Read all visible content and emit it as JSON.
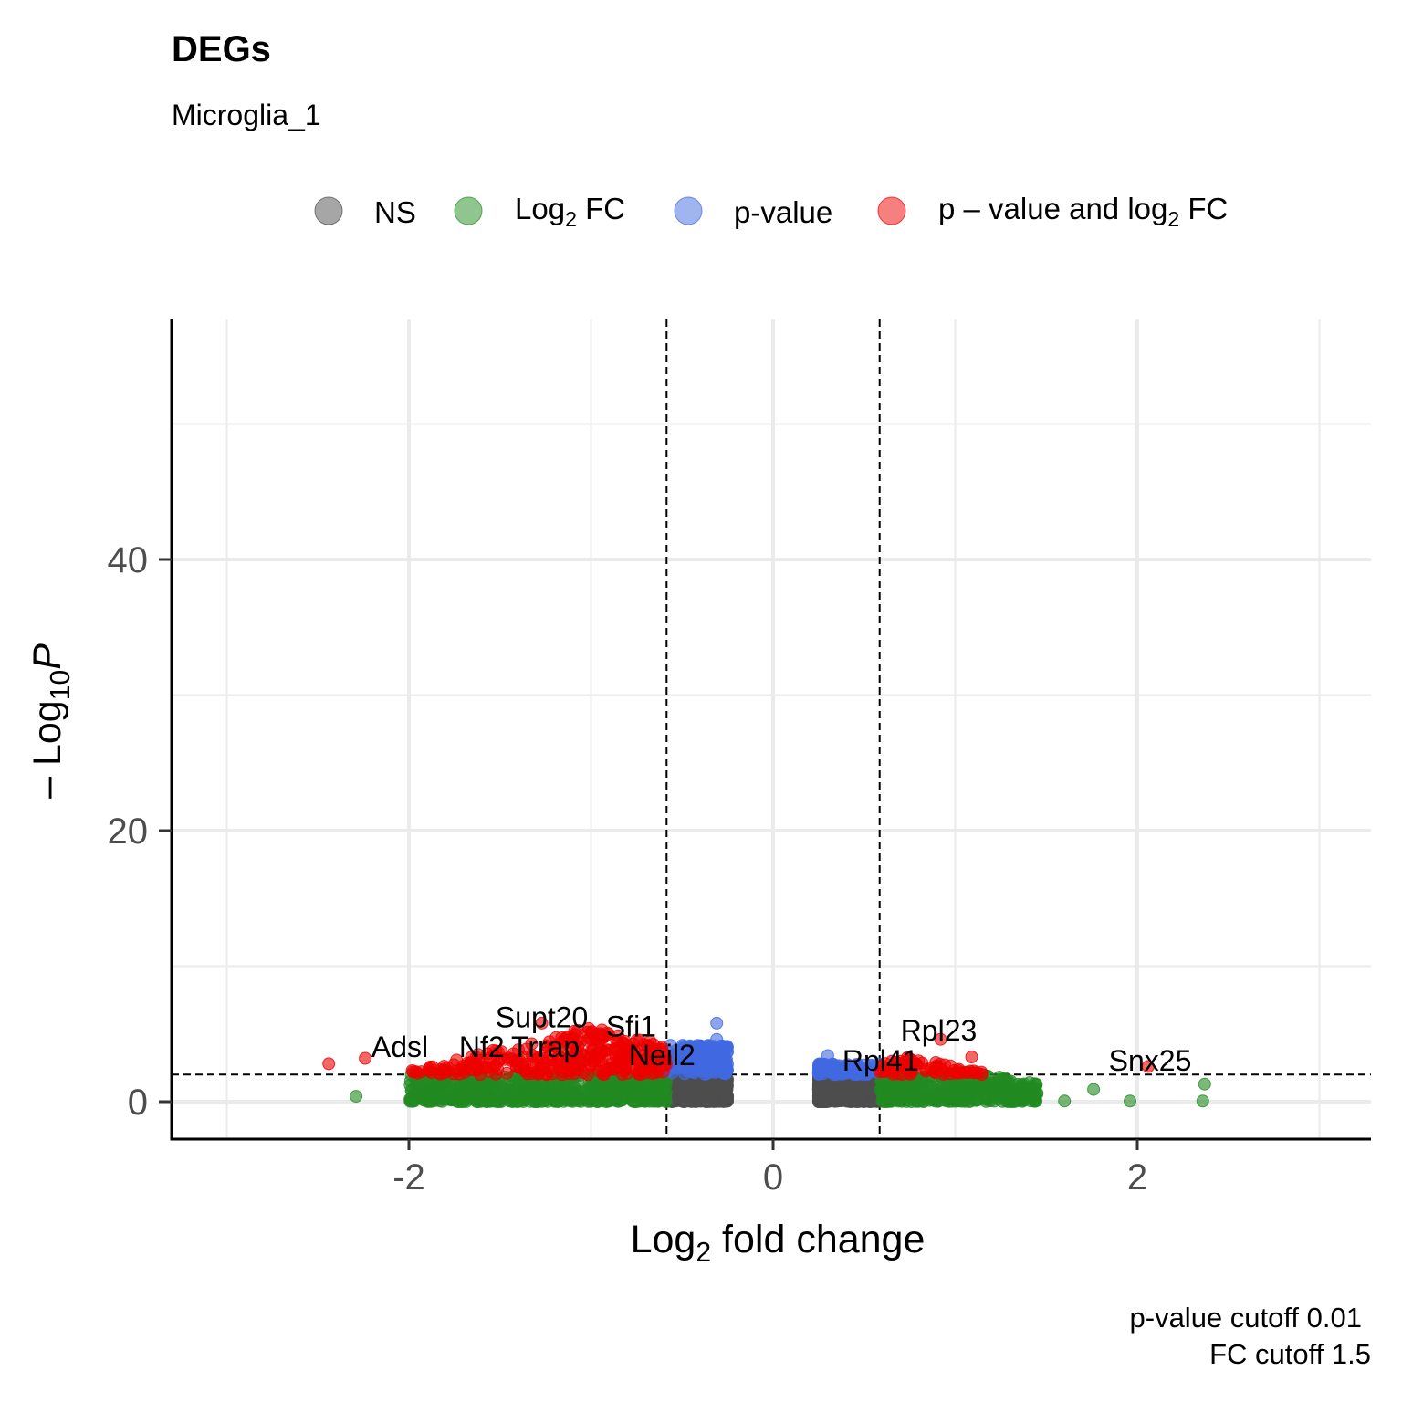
{
  "chart_data": {
    "type": "scatter",
    "title": "DEGs",
    "subtitle": "Microglia_1",
    "xlabel": {
      "main": "Log",
      "sub": "2",
      "rest": " fold change"
    },
    "ylabel": {
      "prefix": "– Log",
      "sub": "10",
      "italic": "P"
    },
    "xlim": [
      -3.0,
      3.3
    ],
    "ylim": [
      -2.8,
      57
    ],
    "x_ticks": [
      -2,
      0,
      2
    ],
    "y_ticks": [
      0,
      20,
      40
    ],
    "x_tick_labels": [
      "-2",
      "0",
      "2"
    ],
    "y_tick_labels": [
      "0",
      "20",
      "40"
    ],
    "grid": true,
    "legend_position": "top",
    "legend": [
      {
        "key": "NS",
        "label": "NS",
        "color": "#4d4d4d"
      },
      {
        "key": "FC",
        "label": "Log",
        "sub": "2",
        "rest": " FC",
        "color": "#228b22"
      },
      {
        "key": "P",
        "label": "p-value",
        "color": "#4169e1"
      },
      {
        "key": "PFC",
        "label": "p – value and log",
        "sub": "2",
        "rest": " FC",
        "color": "#ee0000"
      }
    ],
    "cutoffs": {
      "log2fc": 0.585,
      "neglog10p": 2
    },
    "caption": [
      "p-value cutoff  0.01",
      "FC cutoff  1.5"
    ],
    "labeled_genes": [
      {
        "name": "Adsl",
        "x": -2.05,
        "y": 3.3
      },
      {
        "name": "Nf2",
        "x": -1.6,
        "y": 3.3
      },
      {
        "name": "Trrap",
        "x": -1.25,
        "y": 3.3
      },
      {
        "name": "Supt20",
        "x": -1.27,
        "y": 5.5
      },
      {
        "name": "Sfi1",
        "x": -0.78,
        "y": 4.8
      },
      {
        "name": "Neil2",
        "x": -0.61,
        "y": 2.7
      },
      {
        "name": "Rpl23",
        "x": 0.91,
        "y": 4.5
      },
      {
        "name": "Rpl41",
        "x": 0.59,
        "y": 2.3
      },
      {
        "name": "Snx25",
        "x": 2.07,
        "y": 2.3
      }
    ],
    "notable_points": [
      {
        "x": -2.44,
        "y": 2.8,
        "group": "PFC"
      },
      {
        "x": -2.24,
        "y": 3.2,
        "group": "PFC"
      },
      {
        "x": -1.27,
        "y": 5.8,
        "group": "PFC"
      },
      {
        "x": -0.31,
        "y": 5.8,
        "group": "P"
      },
      {
        "x": -0.31,
        "y": 4.6,
        "group": "P"
      },
      {
        "x": 0.3,
        "y": 3.4,
        "group": "P"
      },
      {
        "x": 0.92,
        "y": 4.6,
        "group": "PFC"
      },
      {
        "x": 1.09,
        "y": 3.3,
        "group": "PFC"
      },
      {
        "x": 2.06,
        "y": 2.6,
        "group": "PFC"
      },
      {
        "x": -2.29,
        "y": 0.4,
        "group": "FC"
      },
      {
        "x": 1.96,
        "y": 0.05,
        "group": "FC"
      },
      {
        "x": 2.36,
        "y": 0.05,
        "group": "FC"
      },
      {
        "x": 2.37,
        "y": 1.3,
        "group": "FC"
      },
      {
        "x": 1.76,
        "y": 0.9,
        "group": "FC"
      },
      {
        "x": 1.6,
        "y": 0.05,
        "group": "FC"
      }
    ]
  }
}
